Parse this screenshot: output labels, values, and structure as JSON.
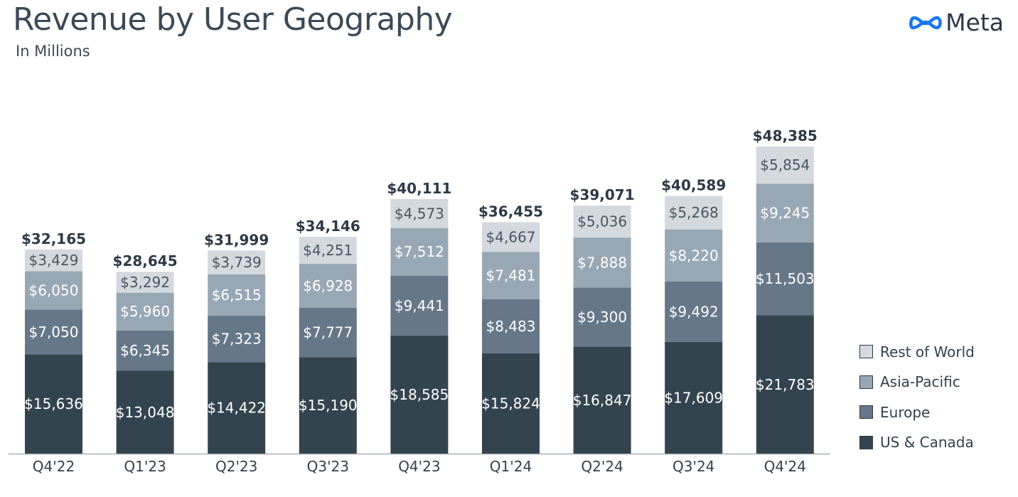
{
  "header": {
    "title": "Revenue by User Geography",
    "subtitle": "In Millions",
    "logo_text": "Meta",
    "logo_icon": "meta-infinity-icon",
    "logo_color": "#1877f2"
  },
  "chart_data": {
    "type": "bar",
    "stacked": true,
    "title": "Revenue by User Geography",
    "subtitle": "In Millions",
    "categories": [
      "Q4'22",
      "Q1'23",
      "Q2'23",
      "Q3'23",
      "Q4'23",
      "Q1'24",
      "Q2'24",
      "Q3'24",
      "Q4'24"
    ],
    "series": [
      {
        "name": "US & Canada",
        "color": "#33444f",
        "label_color": "#ffffff",
        "values": [
          15636,
          13048,
          14422,
          15190,
          18585,
          15824,
          16847,
          17609,
          21783
        ],
        "labels": [
          "$15,636",
          "$13,048",
          "$14,422",
          "$15,190",
          "$18,585",
          "$15,824",
          "$16,847",
          "$17,609",
          "$21,783"
        ]
      },
      {
        "name": "Europe",
        "color": "#667788",
        "label_color": "#ffffff",
        "values": [
          7050,
          6345,
          7323,
          7777,
          9441,
          8483,
          9300,
          9492,
          11503
        ],
        "labels": [
          "$7,050",
          "$6,345",
          "$7,323",
          "$7,777",
          "$9,441",
          "$8,483",
          "$9,300",
          "$9,492",
          "$11,503"
        ]
      },
      {
        "name": "Asia-Pacific",
        "color": "#98a7b4",
        "label_color": "#ffffff",
        "values": [
          6050,
          5960,
          6515,
          6928,
          7512,
          7481,
          7888,
          8220,
          9245
        ],
        "labels": [
          "$6,050",
          "$5,960",
          "$6,515",
          "$6,928",
          "$7,512",
          "$7,481",
          "$7,888",
          "$8,220",
          "$9,245"
        ]
      },
      {
        "name": "Rest of World",
        "color": "#d3d9de",
        "label_color": "#4a5560",
        "values": [
          3429,
          3292,
          3739,
          4251,
          4573,
          4667,
          5036,
          5268,
          5854
        ],
        "labels": [
          "$3,429",
          "$3,292",
          "$3,739",
          "$4,251",
          "$4,573",
          "$4,667",
          "$5,036",
          "$5,268",
          "$5,854"
        ]
      }
    ],
    "totals": [
      32165,
      28645,
      31999,
      34146,
      40111,
      36455,
      39071,
      40589,
      48385
    ],
    "total_labels": [
      "$32,165",
      "$28,645",
      "$31,999",
      "$34,146",
      "$40,111",
      "$36,455",
      "$39,071",
      "$40,589",
      "$48,385"
    ],
    "ylim": [
      0,
      48385
    ],
    "grid": false,
    "legend_position": "right"
  },
  "legend": {
    "items": [
      {
        "label": "Rest of World",
        "color": "#d3d9de"
      },
      {
        "label": "Asia-Pacific",
        "color": "#98a7b4"
      },
      {
        "label": "Europe",
        "color": "#667788"
      },
      {
        "label": "US & Canada",
        "color": "#33444f"
      }
    ]
  }
}
